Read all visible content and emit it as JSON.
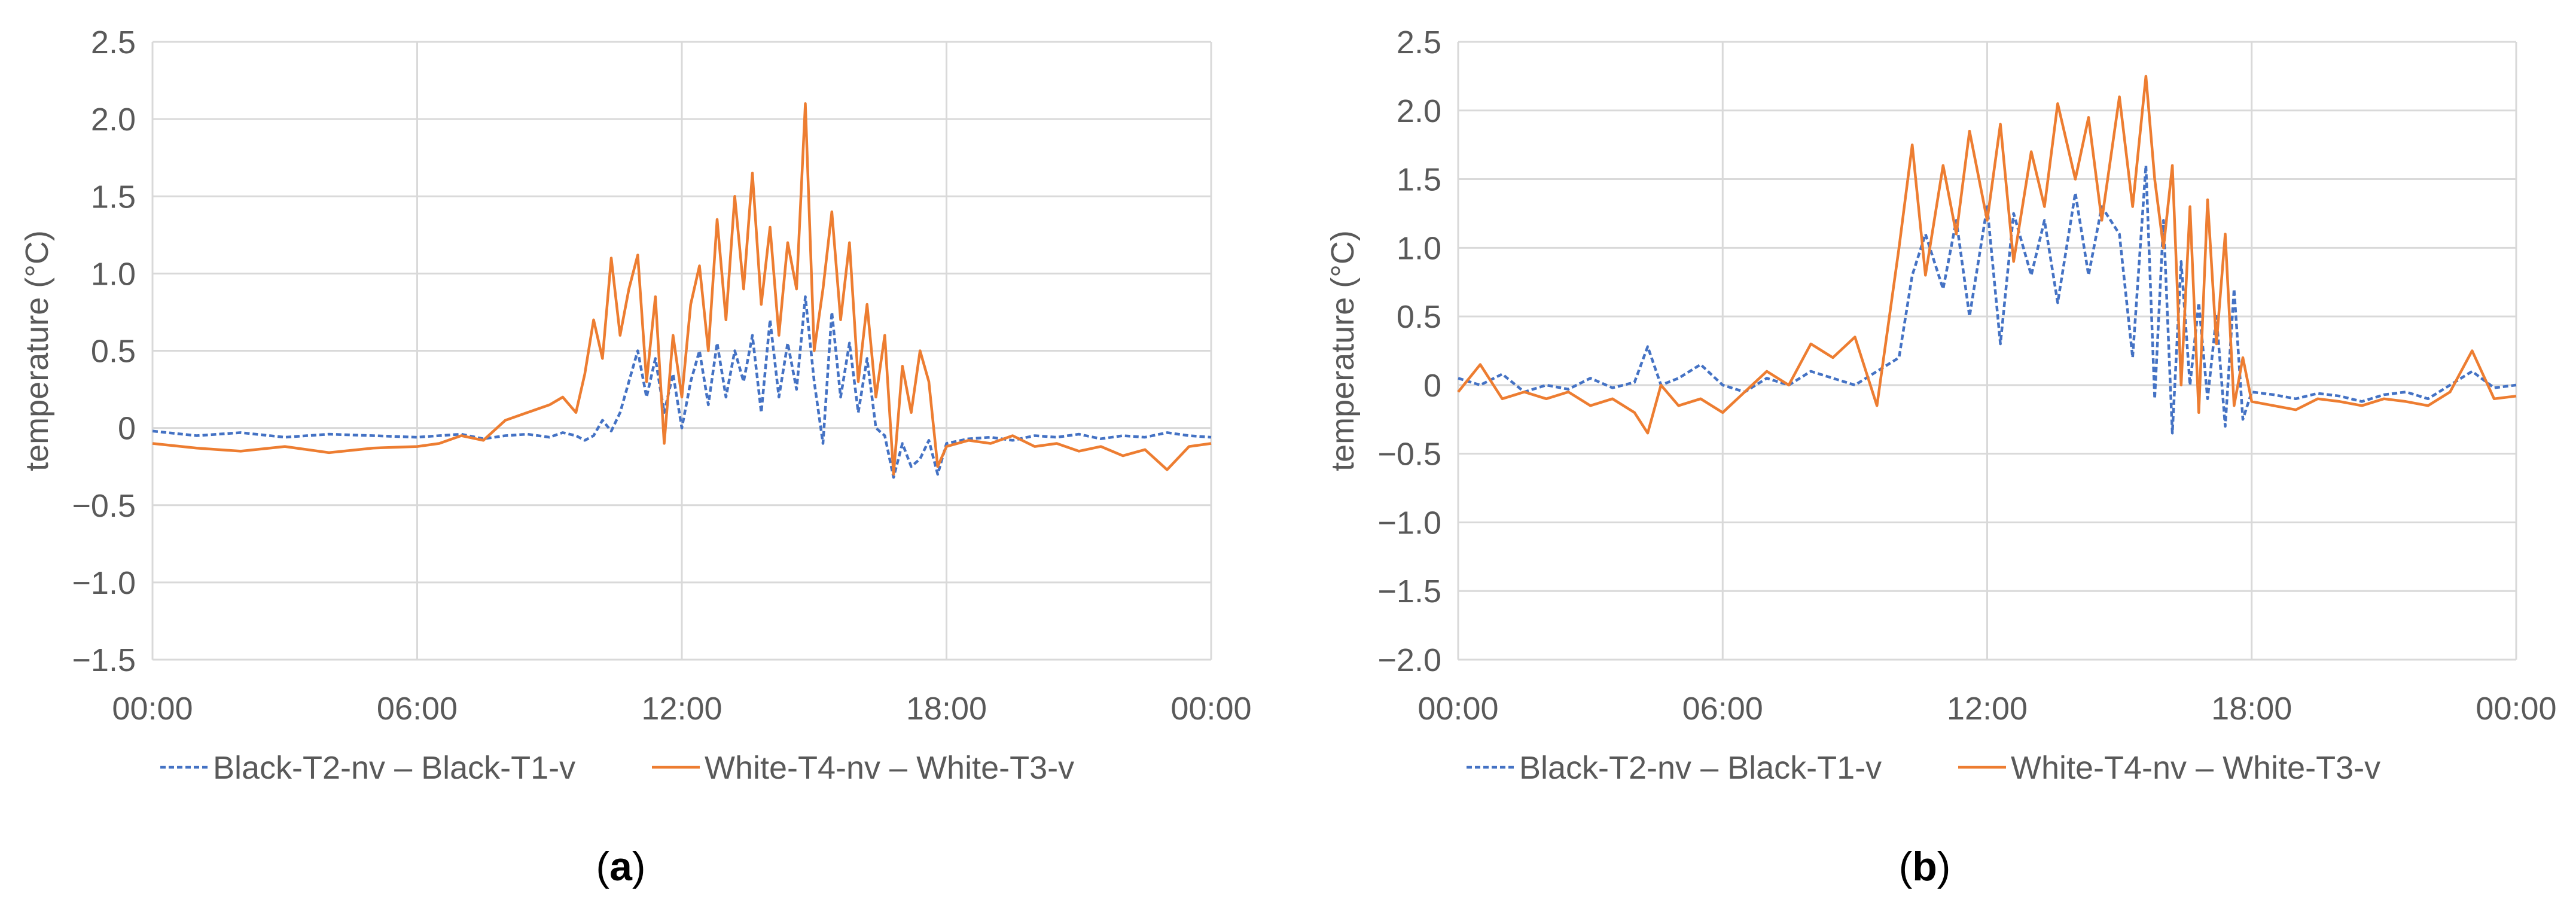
{
  "colors": {
    "black_series": "#4472c4",
    "white_series": "#ed7d31",
    "grid": "#d9d9d9",
    "text": "#595959"
  },
  "chart_data": [
    {
      "type": "line",
      "panel_label": "a",
      "title": "",
      "xlabel": "",
      "ylabel": "temperature (°C)",
      "xlim": [
        0,
        24
      ],
      "ylim": [
        -1.5,
        2.5
      ],
      "x_ticks": [
        0,
        6,
        12,
        18,
        24
      ],
      "x_tick_labels": [
        "00:00",
        "06:00",
        "12:00",
        "18:00",
        "00:00"
      ],
      "y_ticks": [
        -1.5,
        -1.0,
        -0.5,
        0,
        0.5,
        1.0,
        1.5,
        2.0,
        2.5
      ],
      "y_tick_labels": [
        "−1.5",
        "−1.0",
        "−0.5",
        "0",
        "0.5",
        "1.0",
        "1.5",
        "2.0",
        "2.5"
      ],
      "grid": true,
      "legend_position": "bottom",
      "series": [
        {
          "name": "Black-T2-nv – Black-T1-v",
          "style": "dashed",
          "color": "#4472c4",
          "x": [
            0,
            1,
            2,
            3,
            4,
            5,
            6,
            6.5,
            7,
            7.5,
            8,
            8.5,
            9,
            9.3,
            9.6,
            9.8,
            10,
            10.2,
            10.4,
            10.6,
            10.8,
            11,
            11.2,
            11.4,
            11.6,
            11.8,
            12,
            12.2,
            12.4,
            12.6,
            12.8,
            13,
            13.2,
            13.4,
            13.6,
            13.8,
            14,
            14.2,
            14.4,
            14.6,
            14.8,
            15,
            15.2,
            15.4,
            15.6,
            15.8,
            16,
            16.2,
            16.4,
            16.6,
            16.8,
            17,
            17.2,
            17.4,
            17.6,
            17.8,
            18,
            18.5,
            19,
            19.5,
            20,
            20.5,
            21,
            21.5,
            22,
            22.5,
            23,
            23.5,
            24
          ],
          "y": [
            -0.02,
            -0.05,
            -0.03,
            -0.06,
            -0.04,
            -0.05,
            -0.06,
            -0.05,
            -0.04,
            -0.07,
            -0.05,
            -0.04,
            -0.06,
            -0.03,
            -0.05,
            -0.08,
            -0.05,
            0.05,
            -0.02,
            0.1,
            0.3,
            0.5,
            0.2,
            0.45,
            0.1,
            0.35,
            0.0,
            0.3,
            0.5,
            0.15,
            0.55,
            0.2,
            0.5,
            0.3,
            0.6,
            0.1,
            0.7,
            0.2,
            0.55,
            0.25,
            0.85,
            0.3,
            -0.1,
            0.75,
            0.2,
            0.55,
            0.1,
            0.45,
            0.0,
            -0.05,
            -0.32,
            -0.1,
            -0.25,
            -0.2,
            -0.08,
            -0.3,
            -0.1,
            -0.07,
            -0.06,
            -0.08,
            -0.05,
            -0.06,
            -0.04,
            -0.07,
            -0.05,
            -0.06,
            -0.03,
            -0.05,
            -0.06
          ]
        },
        {
          "name": "White-T4-nv – White-T3-v",
          "style": "solid",
          "color": "#ed7d31",
          "x": [
            0,
            1,
            2,
            3,
            4,
            5,
            6,
            6.5,
            7,
            7.5,
            8,
            8.5,
            9,
            9.3,
            9.6,
            9.8,
            10,
            10.2,
            10.4,
            10.6,
            10.8,
            11,
            11.2,
            11.4,
            11.6,
            11.8,
            12,
            12.2,
            12.4,
            12.6,
            12.8,
            13,
            13.2,
            13.4,
            13.6,
            13.8,
            14,
            14.2,
            14.4,
            14.6,
            14.8,
            15,
            15.2,
            15.4,
            15.6,
            15.8,
            16,
            16.2,
            16.4,
            16.6,
            16.8,
            17,
            17.2,
            17.4,
            17.6,
            17.8,
            18,
            18.5,
            19,
            19.5,
            20,
            20.5,
            21,
            21.5,
            22,
            22.5,
            23,
            23.5,
            24
          ],
          "y": [
            -0.1,
            -0.13,
            -0.15,
            -0.12,
            -0.16,
            -0.13,
            -0.12,
            -0.1,
            -0.05,
            -0.08,
            0.05,
            0.1,
            0.15,
            0.2,
            0.1,
            0.35,
            0.7,
            0.45,
            1.1,
            0.6,
            0.9,
            1.12,
            0.3,
            0.85,
            -0.1,
            0.6,
            0.2,
            0.8,
            1.05,
            0.5,
            1.35,
            0.7,
            1.5,
            0.9,
            1.65,
            0.8,
            1.3,
            0.6,
            1.2,
            0.9,
            2.1,
            0.5,
            0.9,
            1.4,
            0.7,
            1.2,
            0.3,
            0.8,
            0.2,
            0.6,
            -0.3,
            0.4,
            0.1,
            0.5,
            0.3,
            -0.25,
            -0.12,
            -0.08,
            -0.1,
            -0.05,
            -0.12,
            -0.1,
            -0.15,
            -0.12,
            -0.18,
            -0.14,
            -0.27,
            -0.12,
            -0.1
          ]
        }
      ]
    },
    {
      "type": "line",
      "panel_label": "b",
      "title": "",
      "xlabel": "",
      "ylabel": "temperature (°C)",
      "xlim": [
        0,
        24
      ],
      "ylim": [
        -2.0,
        2.5
      ],
      "x_ticks": [
        0,
        6,
        12,
        18,
        24
      ],
      "x_tick_labels": [
        "00:00",
        "06:00",
        "12:00",
        "18:00",
        "00:00"
      ],
      "y_ticks": [
        -2.0,
        -1.5,
        -1.0,
        -0.5,
        0,
        0.5,
        1.0,
        1.5,
        2.0,
        2.5
      ],
      "y_tick_labels": [
        "−2.0",
        "−1.5",
        "−1.0",
        "−0.5",
        "0",
        "0.5",
        "1.0",
        "1.5",
        "2.0",
        "2.5"
      ],
      "grid": true,
      "legend_position": "bottom",
      "series": [
        {
          "name": "Black-T2-nv – Black-T1-v",
          "style": "dashed",
          "color": "#4472c4",
          "x": [
            0,
            0.5,
            1,
            1.5,
            2,
            2.5,
            3,
            3.5,
            4,
            4.3,
            4.6,
            5,
            5.5,
            6,
            6.5,
            7,
            7.5,
            8,
            8.5,
            9,
            9.5,
            10,
            10.3,
            10.6,
            11,
            11.3,
            11.6,
            12,
            12.3,
            12.6,
            13,
            13.3,
            13.6,
            14,
            14.3,
            14.6,
            15,
            15.3,
            15.6,
            15.8,
            16,
            16.2,
            16.4,
            16.6,
            16.8,
            17,
            17.2,
            17.4,
            17.6,
            17.8,
            18,
            18.5,
            19,
            19.5,
            20,
            20.5,
            21,
            21.5,
            22,
            22.5,
            23,
            23.5,
            24
          ],
          "y": [
            0.05,
            0.0,
            0.08,
            -0.05,
            0.0,
            -0.03,
            0.05,
            -0.02,
            0.02,
            0.28,
            0.0,
            0.05,
            0.15,
            0.0,
            -0.05,
            0.05,
            0.0,
            0.1,
            0.05,
            0.0,
            0.1,
            0.2,
            0.8,
            1.1,
            0.7,
            1.2,
            0.5,
            1.3,
            0.3,
            1.25,
            0.8,
            1.2,
            0.6,
            1.4,
            0.8,
            1.3,
            1.1,
            0.2,
            1.6,
            -0.1,
            1.2,
            -0.35,
            0.9,
            0.0,
            0.6,
            -0.1,
            0.5,
            -0.3,
            0.7,
            -0.25,
            -0.05,
            -0.07,
            -0.1,
            -0.06,
            -0.08,
            -0.12,
            -0.07,
            -0.05,
            -0.1,
            0.0,
            0.1,
            -0.02,
            0.0
          ]
        },
        {
          "name": "White-T4-nv – White-T3-v",
          "style": "solid",
          "color": "#ed7d31",
          "x": [
            0,
            0.5,
            1,
            1.5,
            2,
            2.5,
            3,
            3.5,
            4,
            4.3,
            4.6,
            5,
            5.5,
            6,
            6.5,
            7,
            7.5,
            8,
            8.5,
            9,
            9.5,
            10,
            10.3,
            10.6,
            11,
            11.3,
            11.6,
            12,
            12.3,
            12.6,
            13,
            13.3,
            13.6,
            14,
            14.3,
            14.6,
            15,
            15.3,
            15.6,
            15.8,
            16,
            16.2,
            16.4,
            16.6,
            16.8,
            17,
            17.2,
            17.4,
            17.6,
            17.8,
            18,
            18.5,
            19,
            19.5,
            20,
            20.5,
            21,
            21.5,
            22,
            22.5,
            23,
            23.5,
            24
          ],
          "y": [
            -0.05,
            0.15,
            -0.1,
            -0.05,
            -0.1,
            -0.05,
            -0.15,
            -0.1,
            -0.2,
            -0.35,
            0.0,
            -0.15,
            -0.1,
            -0.2,
            -0.05,
            0.1,
            0.0,
            0.3,
            0.2,
            0.35,
            -0.15,
            1.0,
            1.75,
            0.8,
            1.6,
            1.1,
            1.85,
            1.2,
            1.9,
            0.9,
            1.7,
            1.3,
            2.05,
            1.5,
            1.95,
            1.2,
            2.1,
            1.3,
            2.25,
            1.5,
            1.0,
            1.6,
            0.0,
            1.3,
            -0.2,
            1.35,
            0.3,
            1.1,
            -0.15,
            0.2,
            -0.12,
            -0.15,
            -0.18,
            -0.1,
            -0.12,
            -0.15,
            -0.1,
            -0.12,
            -0.15,
            -0.05,
            0.25,
            -0.1,
            -0.08
          ]
        }
      ]
    }
  ]
}
